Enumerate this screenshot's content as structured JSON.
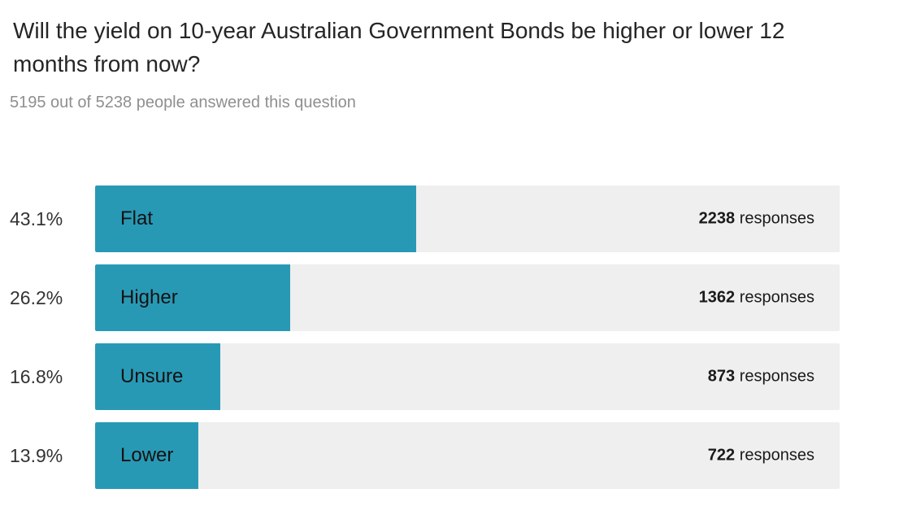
{
  "header": {
    "title": "Will the yield on 10-year Australian Government Bonds be higher or lower 12 months from now?",
    "subtitle": "5195 out of 5238 people answered this question"
  },
  "colors": {
    "bar_fill": "#2899b5",
    "bar_track": "#efefef",
    "subtitle_text": "#8f8f8f"
  },
  "chart_data": {
    "type": "bar",
    "title": "Will the yield on 10-year Australian Government Bonds be higher or lower 12 months from now?",
    "subtitle": "5195 out of 5238 people answered this question",
    "answered": 5195,
    "total_people": 5238,
    "orientation": "horizontal",
    "categories": [
      "Flat",
      "Higher",
      "Unsure",
      "Lower"
    ],
    "values": [
      2238,
      1362,
      873,
      722
    ],
    "percentages": [
      43.1,
      26.2,
      16.8,
      13.9
    ],
    "value_suffix": "responses",
    "rows": [
      {
        "percent": "43.1%",
        "label": "Flat",
        "count": "2238",
        "responses_word": "responses",
        "pct_value": 43.1
      },
      {
        "percent": "26.2%",
        "label": "Higher",
        "count": "1362",
        "responses_word": "responses",
        "pct_value": 26.2
      },
      {
        "percent": "16.8%",
        "label": "Unsure",
        "count": "873",
        "responses_word": "responses",
        "pct_value": 16.8
      },
      {
        "percent": "13.9%",
        "label": "Lower",
        "count": "722",
        "responses_word": "responses",
        "pct_value": 13.9
      }
    ]
  }
}
